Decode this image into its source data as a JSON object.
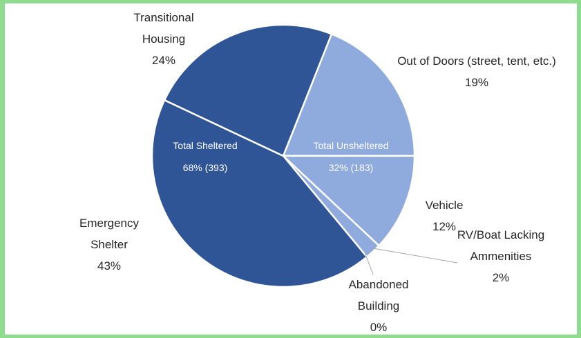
{
  "chart_data": {
    "type": "pie",
    "categories": [
      "Out of Doors (street, tent, etc.)",
      "Vehicle",
      "RV/Boat Lacking Ammenities",
      "Abandoned Building",
      "Emergency Shelter",
      "Transitional Housing"
    ],
    "values": [
      19,
      12,
      2,
      0,
      43,
      24
    ],
    "value_labels": [
      "19%",
      "12%",
      "2%",
      "0%",
      "43%",
      "24%"
    ],
    "colors": [
      "#8faadc",
      "#8faadc",
      "#8faadc",
      "#8faadc",
      "#2f5597",
      "#2f5597"
    ],
    "annotations": [
      {
        "title": "Total Sheltered",
        "label": "68% (393)"
      },
      {
        "title": "Total Unsheltered",
        "label": "32% (183)"
      }
    ]
  }
}
